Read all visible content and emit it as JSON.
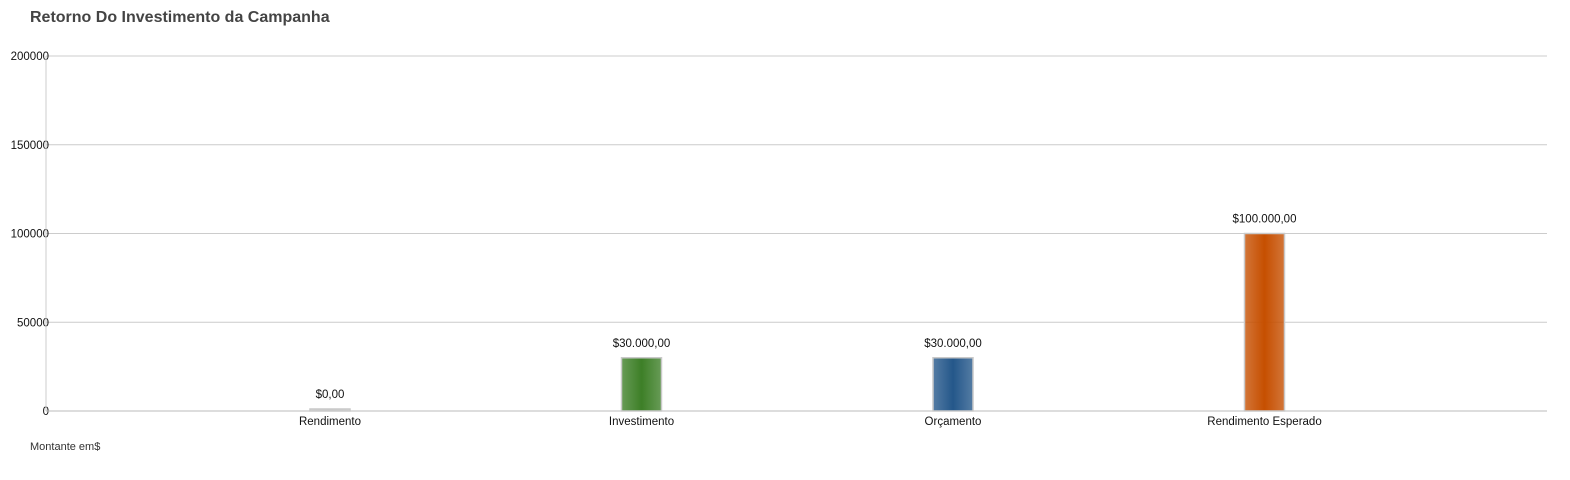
{
  "title": "Retorno Do Investimento da Campanha",
  "footnote": "Montante em$",
  "chart_data": {
    "type": "bar",
    "title": "Retorno Do Investimento da Campanha",
    "xlabel": "",
    "ylabel": "",
    "categories": [
      "Rendimento",
      "Investimento",
      "Orçamento",
      "Rendimento Esperado"
    ],
    "values": [
      0,
      30000,
      30000,
      100000
    ],
    "value_labels": [
      "$0,00",
      "$30.000,00",
      "$30.000,00",
      "$100.000,00"
    ],
    "colors": [
      "#c8c8c8",
      "#3d7f27",
      "#24578a",
      "#c64f00"
    ],
    "ylim": [
      0,
      200000
    ],
    "yticks": [
      0,
      50000,
      100000,
      150000,
      200000
    ],
    "grid": true,
    "legend": "none"
  }
}
